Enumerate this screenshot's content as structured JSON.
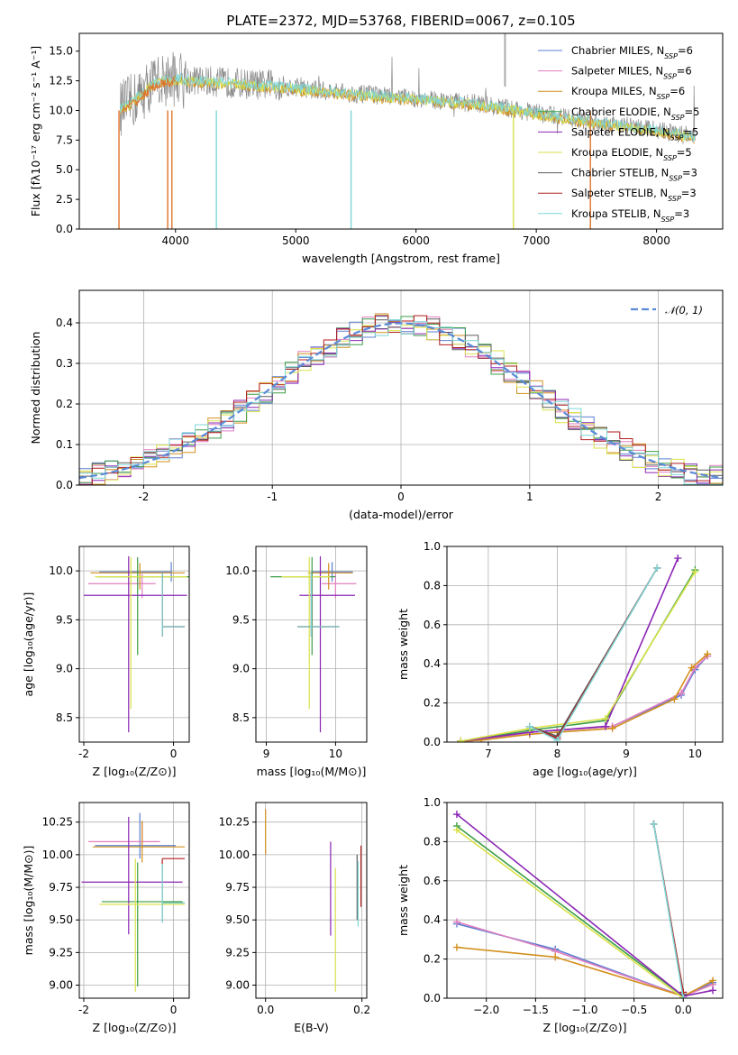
{
  "colors": {
    "Chabrier MILES": "#5b7fd1",
    "Salpeter MILES": "#e17fc0",
    "Kroupa MILES": "#d2901e",
    "Chabrier ELODIE": "#3c9e47",
    "Salpeter ELODIE": "#8b26b4",
    "Kroupa ELODIE": "#d9e24a",
    "Chabrier STELIB": "#5c5c5c",
    "Salpeter STELIB": "#b01e1e",
    "Kroupa STELIB": "#7fd6d6",
    "normal": "#5a8ad8",
    "orange": "#e0742a"
  },
  "chart_data": [
    {
      "id": "spectrum",
      "type": "line",
      "title": "PLATE=2372, MJD=53768, FIBERID=0067, z=0.105",
      "xlabel": "wavelength [Angstrom, rest frame]",
      "ylabel": "Flux [fλ10⁻¹⁷ erg cm⁻² s⁻¹ A⁻¹]",
      "xlim": [
        3200,
        8550
      ],
      "ylim": [
        0,
        16.5
      ],
      "xticks": [
        4000,
        5000,
        6000,
        7000,
        8000
      ],
      "yticks": [
        0.0,
        2.5,
        5.0,
        7.5,
        10.0,
        12.5,
        15.0
      ],
      "ytick_labels": [
        "0.0",
        "2.5",
        "5.0",
        "7.5",
        "10.0",
        "12.5",
        "15.0"
      ],
      "legend": [
        "Chabrier MILES, N_SSP=6",
        "Salpeter MILES, N_SSP=6",
        "Kroupa MILES, N_SSP=6",
        "Chabrier ELODIE, N_SSP=5",
        "Salpeter ELODIE, N_SSP=5",
        "Kroupa ELODIE, N_SSP=5",
        "Chabrier STELIB, N_SSP=3",
        "Salpeter STELIB, N_SSP=3",
        "Kroupa STELIB, N_SSP=3"
      ],
      "legend_position": "top-right",
      "continuum": {
        "x": [
          3550,
          3700,
          3800,
          3900,
          4000,
          4200,
          4500,
          4800,
          5000,
          5500,
          6000,
          6500,
          7000,
          7500,
          8000,
          8300
        ],
        "y": [
          10.2,
          11.2,
          12.2,
          12.6,
          12.7,
          12.5,
          12.3,
          12.1,
          11.9,
          11.4,
          11.0,
          10.6,
          9.8,
          9.0,
          8.4,
          7.8
        ]
      },
      "spike_x": [
        3530,
        3935,
        3970,
        4340,
        5460,
        6810,
        7450
      ],
      "grid": false
    },
    {
      "id": "residuals",
      "type": "histogram",
      "xlabel": "(data-model)/error",
      "ylabel": "Normed distribution",
      "xlim": [
        -2.5,
        2.5
      ],
      "ylim": [
        0,
        0.48
      ],
      "xticks": [
        -2,
        -1,
        0,
        1,
        2
      ],
      "yticks": [
        0.0,
        0.1,
        0.2,
        0.3,
        0.4
      ],
      "ytick_labels": [
        "0.0",
        "0.1",
        "0.2",
        "0.3",
        "0.4"
      ],
      "legend": [
        "𝒩(0, 1)"
      ],
      "legend_position": "top-right",
      "bin_width": 0.1,
      "grid": true
    },
    {
      "id": "age-vs-Z",
      "type": "errorbar",
      "xlabel": "Z [log₁₀(Z/Z⊙)]",
      "ylabel": "age  [log₁₀(age/yr)]",
      "xlim": [
        -2.1,
        0.35
      ],
      "ylim": [
        8.25,
        10.25
      ],
      "xticks": [
        -2,
        0
      ],
      "yticks": [
        8.5,
        9.0,
        9.5,
        10.0
      ],
      "ytick_labels": [
        "8.5",
        "9.0",
        "9.5",
        "10.0"
      ],
      "points": [
        {
          "model": "Chabrier MILES",
          "x": -0.05,
          "xerr": [
            1.6,
            0.0
          ],
          "y": 9.99,
          "yerr": [
            0.1,
            0.1
          ]
        },
        {
          "model": "Salpeter MILES",
          "x": -0.7,
          "xerr": [
            1.2,
            0.3
          ],
          "y": 9.87,
          "yerr": [
            0.15,
            0.1
          ]
        },
        {
          "model": "Kroupa MILES",
          "x": -0.75,
          "xerr": [
            1.1,
            1.0
          ],
          "y": 9.98,
          "yerr": [
            0.17,
            0.1
          ]
        },
        {
          "model": "Chabrier ELODIE",
          "x": -0.8,
          "xerr": [
            0.9,
            1.2
          ],
          "y": 9.94,
          "yerr": [
            0.8,
            0.2
          ]
        },
        {
          "model": "Salpeter ELODIE",
          "x": -1.0,
          "xerr": [
            1.0,
            1.3
          ],
          "y": 9.75,
          "yerr": [
            1.4,
            0.4
          ]
        },
        {
          "model": "Kroupa ELODIE",
          "x": -0.95,
          "xerr": [
            0.8,
            1.25
          ],
          "y": 9.94,
          "yerr": [
            1.35,
            0.2
          ]
        },
        {
          "model": "Chabrier STELIB",
          "x": -0.25,
          "xerr": [
            0.0,
            0.5
          ],
          "y": 9.43,
          "yerr": [
            0.1,
            0.55
          ]
        },
        {
          "model": "Salpeter STELIB",
          "x": -0.25,
          "xerr": [
            0.0,
            0.5
          ],
          "y": 9.43,
          "yerr": [
            0.1,
            0.55
          ]
        },
        {
          "model": "Kroupa STELIB",
          "x": -0.25,
          "xerr": [
            0.0,
            0.5
          ],
          "y": 9.43,
          "yerr": [
            0.1,
            0.55
          ]
        }
      ]
    },
    {
      "id": "age-vs-mass",
      "type": "errorbar",
      "xlabel": "mass [log₁₀(M/M⊙)]",
      "ylabel": "",
      "xlim": [
        8.85,
        10.45
      ],
      "ylim": [
        8.25,
        10.25
      ],
      "xticks": [
        9,
        10
      ],
      "yticks": [
        8.5,
        9.0,
        9.5,
        10.0
      ],
      "ytick_labels": [
        "8.5",
        "9.0",
        "9.5",
        "10.0"
      ],
      "points": [
        {
          "model": "Chabrier MILES",
          "x": 9.95,
          "xerr": [
            0.3,
            0.3
          ],
          "y": 9.99,
          "yerr": [
            0.1,
            0.1
          ]
        },
        {
          "model": "Salpeter MILES",
          "x": 10.0,
          "xerr": [
            0.2,
            0.3
          ],
          "y": 9.87,
          "yerr": [
            0.15,
            0.1
          ]
        },
        {
          "model": "Kroupa MILES",
          "x": 9.9,
          "xerr": [
            0.3,
            0.35
          ],
          "y": 9.98,
          "yerr": [
            0.17,
            0.1
          ]
        },
        {
          "model": "Chabrier ELODIE",
          "x": 9.66,
          "xerr": [
            0.6,
            0.34
          ],
          "y": 9.94,
          "yerr": [
            0.8,
            0.2
          ]
        },
        {
          "model": "Salpeter ELODIE",
          "x": 9.78,
          "xerr": [
            0.3,
            0.5
          ],
          "y": 9.75,
          "yerr": [
            1.4,
            0.4
          ]
        },
        {
          "model": "Kroupa ELODIE",
          "x": 9.62,
          "xerr": [
            0.4,
            0.3
          ],
          "y": 9.94,
          "yerr": [
            1.35,
            0.2
          ]
        },
        {
          "model": "Chabrier STELIB",
          "x": 9.65,
          "xerr": [
            0.2,
            0.4
          ],
          "y": 9.43,
          "yerr": [
            0.1,
            0.55
          ]
        },
        {
          "model": "Salpeter STELIB",
          "x": 9.65,
          "xerr": [
            0.2,
            0.4
          ],
          "y": 9.43,
          "yerr": [
            0.1,
            0.55
          ]
        },
        {
          "model": "Kroupa STELIB",
          "x": 9.65,
          "xerr": [
            0.2,
            0.4
          ],
          "y": 9.43,
          "yerr": [
            0.1,
            0.55
          ]
        }
      ]
    },
    {
      "id": "massweight-vs-age",
      "type": "line",
      "xlabel": "age  [log₁₀(age/yr)]",
      "ylabel": "mass weight",
      "xlim": [
        6.4,
        10.4
      ],
      "ylim": [
        0,
        1.0
      ],
      "xticks": [
        7,
        8,
        9,
        10
      ],
      "yticks": [
        0.0,
        0.2,
        0.4,
        0.6,
        0.8,
        1.0
      ],
      "ytick_labels": [
        "0.0",
        "0.2",
        "0.4",
        "0.6",
        "0.8",
        "1.0"
      ],
      "series": [
        {
          "model": "Chabrier MILES",
          "x": [
            6.6,
            6.9,
            7.6,
            8.0,
            8.8,
            9.8,
            10.0,
            10.18
          ],
          "y": [
            0.005,
            0.01,
            0.05,
            0.06,
            0.08,
            0.24,
            0.37,
            0.44
          ]
        },
        {
          "model": "Salpeter MILES",
          "x": [
            6.6,
            6.9,
            7.6,
            8.0,
            8.8,
            9.8,
            10.0,
            10.18
          ],
          "y": [
            0.005,
            0.01,
            0.05,
            0.06,
            0.08,
            0.25,
            0.38,
            0.44
          ]
        },
        {
          "model": "Kroupa MILES",
          "x": [
            6.6,
            6.9,
            7.6,
            8.0,
            8.8,
            9.7,
            9.95,
            10.18
          ],
          "y": [
            0.005,
            0.01,
            0.04,
            0.05,
            0.07,
            0.22,
            0.38,
            0.45
          ]
        },
        {
          "model": "Chabrier ELODIE",
          "x": [
            6.6,
            7.6,
            8.7,
            10.0
          ],
          "y": [
            0.005,
            0.06,
            0.11,
            0.88
          ]
        },
        {
          "model": "Salpeter ELODIE",
          "x": [
            6.6,
            7.6,
            8.7,
            9.75
          ],
          "y": [
            0.005,
            0.05,
            0.08,
            0.94
          ]
        },
        {
          "model": "Kroupa ELODIE",
          "x": [
            6.6,
            7.6,
            8.7,
            10.0
          ],
          "y": [
            0.005,
            0.07,
            0.12,
            0.87
          ]
        },
        {
          "model": "Chabrier STELIB",
          "x": [
            7.6,
            8.0,
            9.45
          ],
          "y": [
            0.08,
            0.03,
            0.89
          ]
        },
        {
          "model": "Salpeter STELIB",
          "x": [
            7.6,
            8.0,
            9.45
          ],
          "y": [
            0.08,
            0.02,
            0.89
          ]
        },
        {
          "model": "Kroupa STELIB",
          "x": [
            7.6,
            8.0,
            9.45
          ],
          "y": [
            0.08,
            0.01,
            0.89
          ]
        }
      ],
      "grid": true
    },
    {
      "id": "mass-vs-Z",
      "type": "errorbar",
      "xlabel": "Z [log₁₀(Z/Z⊙)]",
      "ylabel": "mass [log₁₀(M/M⊙)]",
      "xlim": [
        -2.1,
        0.35
      ],
      "ylim": [
        8.9,
        10.4
      ],
      "xticks": [
        -2,
        0
      ],
      "yticks": [
        9.0,
        9.25,
        9.5,
        9.75,
        10.0,
        10.25
      ],
      "ytick_labels": [
        "9.00",
        "9.25",
        "9.50",
        "9.75",
        "10.00",
        "10.25"
      ],
      "points": [
        {
          "model": "Chabrier MILES",
          "x": -0.75,
          "xerr": [
            1.0,
            0.8
          ],
          "y": 10.07,
          "yerr": [
            0.1,
            0.25
          ]
        },
        {
          "model": "Salpeter MILES",
          "x": -0.7,
          "xerr": [
            1.2,
            0.4
          ],
          "y": 10.1,
          "yerr": [
            0.05,
            0.15
          ]
        },
        {
          "model": "Kroupa MILES",
          "x": -0.7,
          "xerr": [
            1.1,
            0.95
          ],
          "y": 10.06,
          "yerr": [
            0.12,
            0.2
          ]
        },
        {
          "model": "Chabrier ELODIE",
          "x": -0.8,
          "xerr": [
            0.8,
            1.0
          ],
          "y": 9.64,
          "yerr": [
            0.65,
            0.3
          ]
        },
        {
          "model": "Salpeter ELODIE",
          "x": -1.0,
          "xerr": [
            1.05,
            1.2
          ],
          "y": 9.79,
          "yerr": [
            0.4,
            0.5
          ]
        },
        {
          "model": "Kroupa ELODIE",
          "x": -0.85,
          "xerr": [
            0.8,
            1.1
          ],
          "y": 9.62,
          "yerr": [
            0.67,
            0.35
          ]
        },
        {
          "model": "Chabrier STELIB",
          "x": -0.25,
          "xerr": [
            0.0,
            0.5
          ],
          "y": 9.63,
          "yerr": [
            0.15,
            0.3
          ]
        },
        {
          "model": "Salpeter STELIB",
          "x": -0.25,
          "xerr": [
            0.0,
            0.5
          ],
          "y": 9.97,
          "yerr": [
            0.05,
            0.0
          ]
        },
        {
          "model": "Kroupa STELIB",
          "x": -0.25,
          "xerr": [
            0.0,
            0.5
          ],
          "y": 9.63,
          "yerr": [
            0.15,
            0.3
          ]
        }
      ]
    },
    {
      "id": "mass-vs-EBV",
      "type": "errorbar",
      "xlabel": "E(B-V)",
      "ylabel": "",
      "xlim": [
        -0.02,
        0.21
      ],
      "ylim": [
        8.9,
        10.4
      ],
      "xticks": [
        0.0,
        0.2
      ],
      "xtick_labels": [
        "0.0",
        "0.2"
      ],
      "yticks": [
        9.0,
        9.25,
        9.5,
        9.75,
        10.0,
        10.25
      ],
      "ytick_labels": [
        "9.00",
        "9.25",
        "9.50",
        "9.75",
        "10.00",
        "10.25"
      ],
      "points": [
        {
          "model": "Kroupa MILES",
          "x": 0.0,
          "y": 10.2,
          "yerr": [
            0.2,
            0.15
          ]
        },
        {
          "model": "Salpeter ELODIE",
          "x": 0.135,
          "y": 9.75,
          "yerr": [
            0.37,
            0.35
          ]
        },
        {
          "model": "Kroupa ELODIE",
          "x": 0.145,
          "y": 9.45,
          "yerr": [
            0.5,
            0.45
          ]
        },
        {
          "model": "Chabrier STELIB",
          "x": 0.19,
          "y": 9.7,
          "yerr": [
            0.2,
            0.3
          ]
        },
        {
          "model": "Kroupa STELIB",
          "x": 0.192,
          "y": 9.7,
          "yerr": [
            0.25,
            0.25
          ]
        },
        {
          "model": "Salpeter STELIB",
          "x": 0.198,
          "y": 9.85,
          "yerr": [
            0.25,
            0.22
          ]
        }
      ]
    },
    {
      "id": "massweight-vs-Z",
      "type": "line",
      "xlabel": "Z [log₁₀(Z/Z⊙)]",
      "ylabel": "mass weight",
      "xlim": [
        -2.4,
        0.4
      ],
      "ylim": [
        0,
        1.0
      ],
      "xticks": [
        -2.0,
        -1.5,
        -1.0,
        -0.5,
        0.0
      ],
      "xtick_labels": [
        "−2.0",
        "−1.5",
        "−1.0",
        "−0.5",
        "0.0"
      ],
      "yticks": [
        0.0,
        0.2,
        0.4,
        0.6,
        0.8,
        1.0
      ],
      "ytick_labels": [
        "0.0",
        "0.2",
        "0.4",
        "0.6",
        "0.8",
        "1.0"
      ],
      "series": [
        {
          "model": "Chabrier MILES",
          "x": [
            -2.3,
            -1.3,
            0.0,
            0.3
          ],
          "y": [
            0.38,
            0.25,
            0.01,
            0.08
          ]
        },
        {
          "model": "Salpeter MILES",
          "x": [
            -2.3,
            -1.3,
            0.0,
            0.3
          ],
          "y": [
            0.39,
            0.24,
            0.01,
            0.07
          ]
        },
        {
          "model": "Kroupa MILES",
          "x": [
            -2.3,
            -1.3,
            0.0,
            0.3
          ],
          "y": [
            0.26,
            0.21,
            0.01,
            0.09
          ]
        },
        {
          "model": "Chabrier ELODIE",
          "x": [
            -2.3,
            0.0
          ],
          "y": [
            0.88,
            0.01
          ]
        },
        {
          "model": "Salpeter ELODIE",
          "x": [
            -2.3,
            0.0,
            0.3
          ],
          "y": [
            0.94,
            0.01,
            0.04
          ]
        },
        {
          "model": "Kroupa ELODIE",
          "x": [
            -2.3,
            0.0
          ],
          "y": [
            0.86,
            0.0
          ]
        },
        {
          "model": "Chabrier STELIB",
          "x": [
            -0.3,
            0.0
          ],
          "y": [
            0.89,
            0.02
          ]
        },
        {
          "model": "Salpeter STELIB",
          "x": [
            -0.3,
            0.0
          ],
          "y": [
            0.89,
            0.03
          ]
        },
        {
          "model": "Kroupa STELIB",
          "x": [
            -0.3,
            0.0
          ],
          "y": [
            0.89,
            0.0
          ]
        }
      ],
      "grid": true
    }
  ]
}
